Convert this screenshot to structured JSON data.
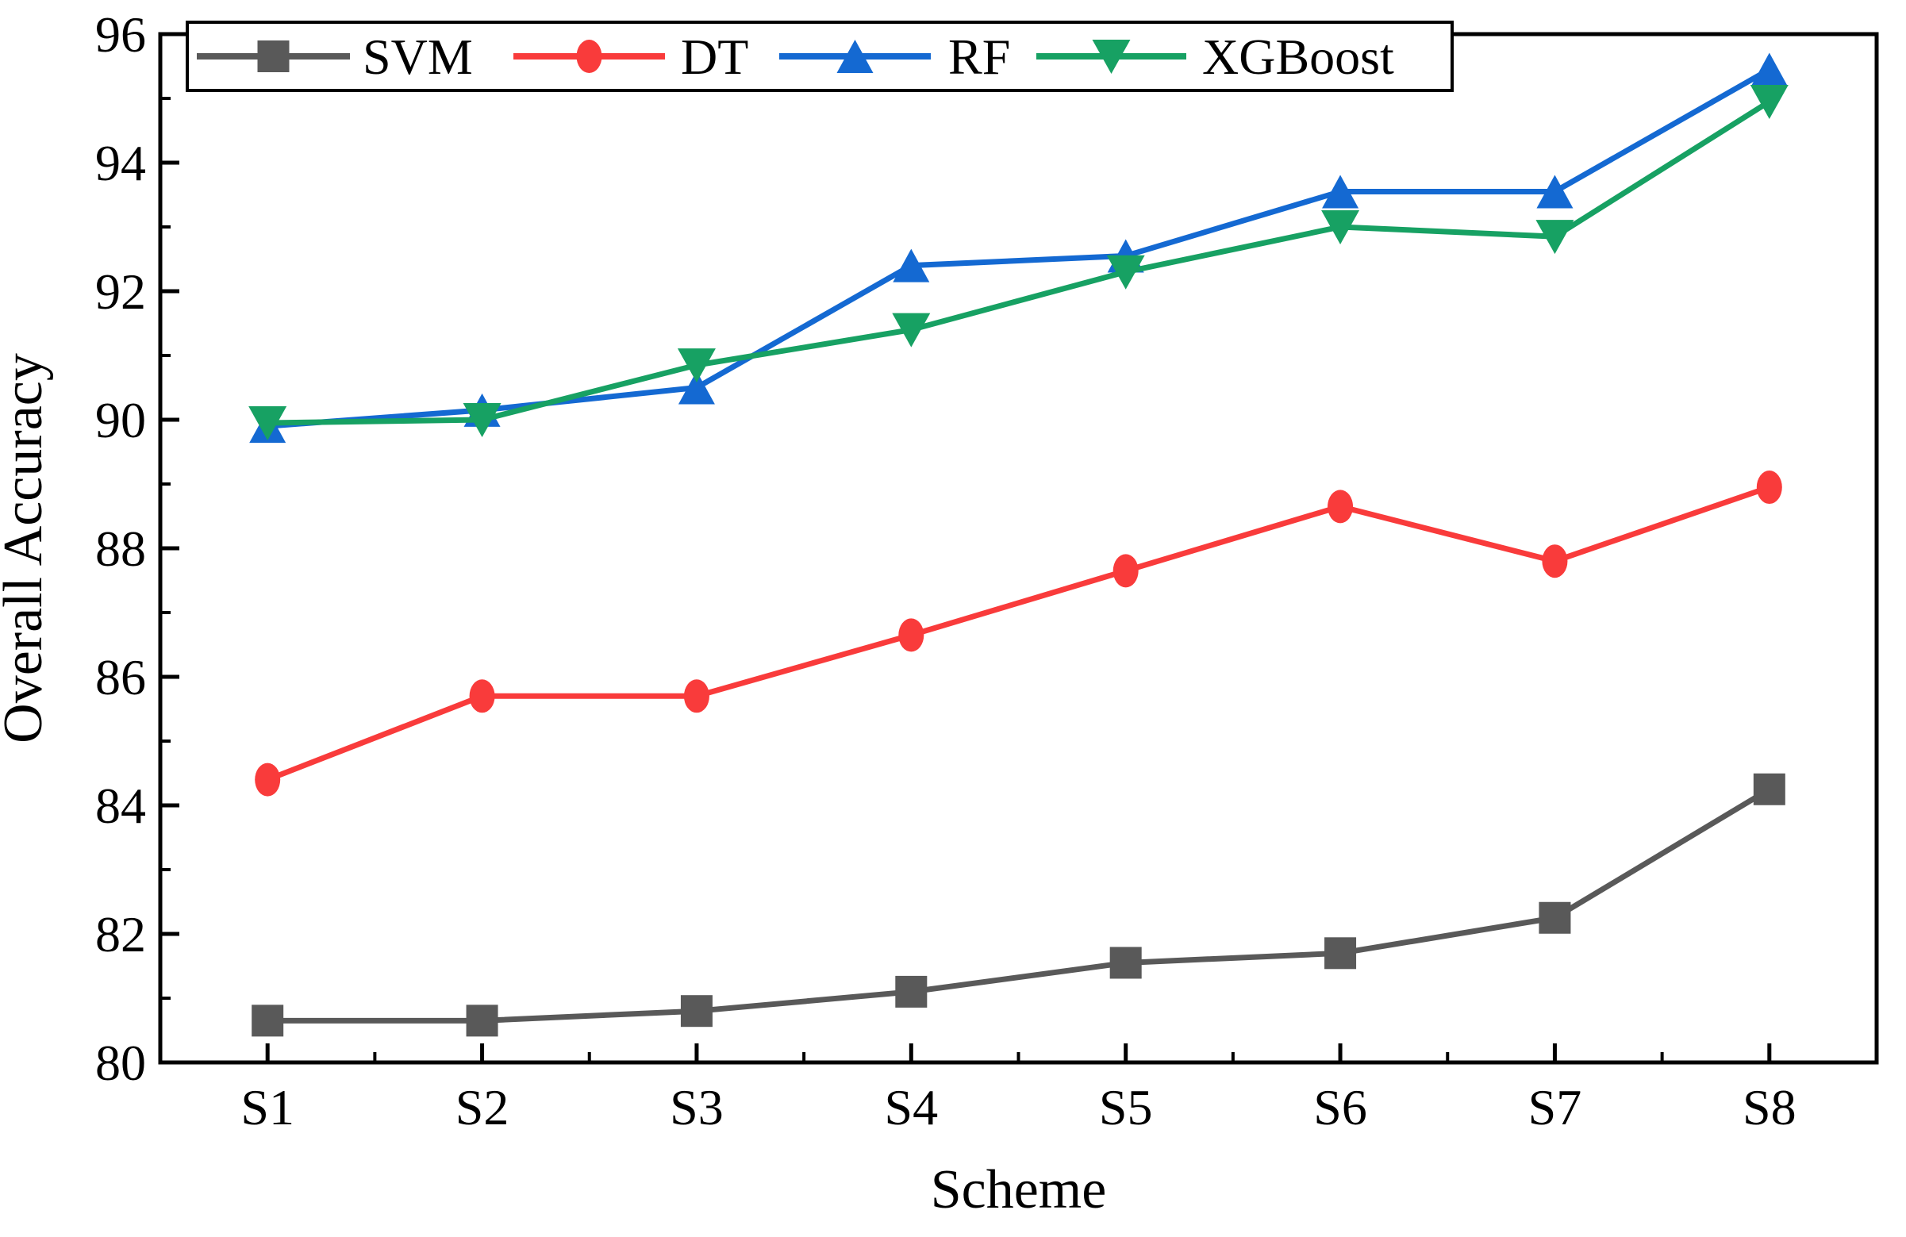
{
  "chart_data": {
    "type": "line",
    "title": "",
    "xlabel": "Scheme",
    "ylabel": "Overall Accuracy",
    "categories": [
      "S1",
      "S2",
      "S3",
      "S4",
      "S5",
      "S6",
      "S7",
      "S8"
    ],
    "ylim": [
      80,
      96
    ],
    "y_ticks": [
      80,
      82,
      84,
      86,
      88,
      90,
      92,
      94,
      96
    ],
    "minor_ticks": true,
    "grid": false,
    "legend_position": "top-inside",
    "axis_color": "#000000",
    "background_color": "#ffffff",
    "series": [
      {
        "name": "SVM",
        "color": "#595959",
        "marker": "square",
        "values": [
          80.65,
          80.65,
          80.8,
          81.1,
          81.55,
          81.7,
          82.25,
          84.25
        ]
      },
      {
        "name": "DT",
        "color": "#F93B3B",
        "marker": "circle",
        "values": [
          84.4,
          85.7,
          85.7,
          86.65,
          87.65,
          88.65,
          87.8,
          88.95
        ]
      },
      {
        "name": "RF",
        "color": "#1469D2",
        "marker": "triangle-up",
        "values": [
          89.9,
          90.15,
          90.5,
          92.4,
          92.55,
          93.55,
          93.55,
          95.45
        ]
      },
      {
        "name": "XGBoost",
        "color": "#17A163",
        "marker": "triangle-down",
        "values": [
          89.95,
          90.0,
          90.85,
          91.4,
          92.3,
          93.0,
          92.85,
          94.95
        ]
      }
    ]
  }
}
